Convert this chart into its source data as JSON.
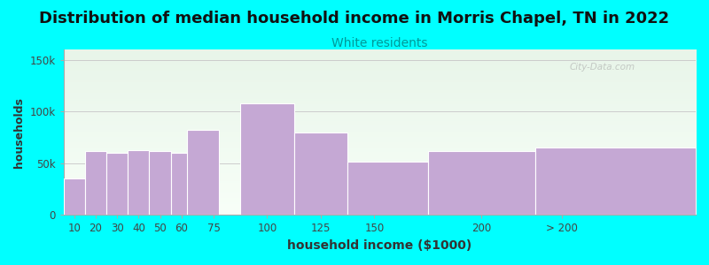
{
  "title": "Distribution of median household income in Morris Chapel, TN in 2022",
  "subtitle": "White residents",
  "xlabel": "household income ($1000)",
  "ylabel": "households",
  "background_color": "#00FFFF",
  "bar_color": "#c5a8d4",
  "bar_edge_color": "#ffffff",
  "title_fontsize": 13,
  "subtitle_fontsize": 10,
  "subtitle_color": "#009999",
  "xlabel_fontsize": 10,
  "ylabel_fontsize": 9,
  "tick_fontsize": 8.5,
  "categories": [
    "10",
    "20",
    "30",
    "40",
    "50",
    "60",
    "75",
    "100",
    "125",
    "150",
    "200",
    "> 200"
  ],
  "left_edges": [
    5,
    15,
    25,
    35,
    45,
    55,
    62.5,
    87.5,
    112.5,
    137.5,
    175,
    225
  ],
  "widths": [
    10,
    10,
    10,
    10,
    10,
    10,
    15,
    25,
    25,
    37.5,
    50,
    75
  ],
  "tick_positions": [
    10,
    20,
    30,
    40,
    50,
    60,
    75,
    100,
    125,
    150,
    200,
    237.5
  ],
  "values": [
    35000,
    62000,
    60000,
    63000,
    62000,
    60000,
    82000,
    108000,
    80000,
    52000,
    62000,
    65000
  ],
  "ylim": [
    0,
    160000
  ],
  "yticks": [
    0,
    50000,
    100000,
    150000
  ],
  "ytick_labels": [
    "0",
    "50k",
    "100k",
    "150k"
  ],
  "xlim": [
    5,
    300
  ],
  "watermark": "City-Data.com"
}
